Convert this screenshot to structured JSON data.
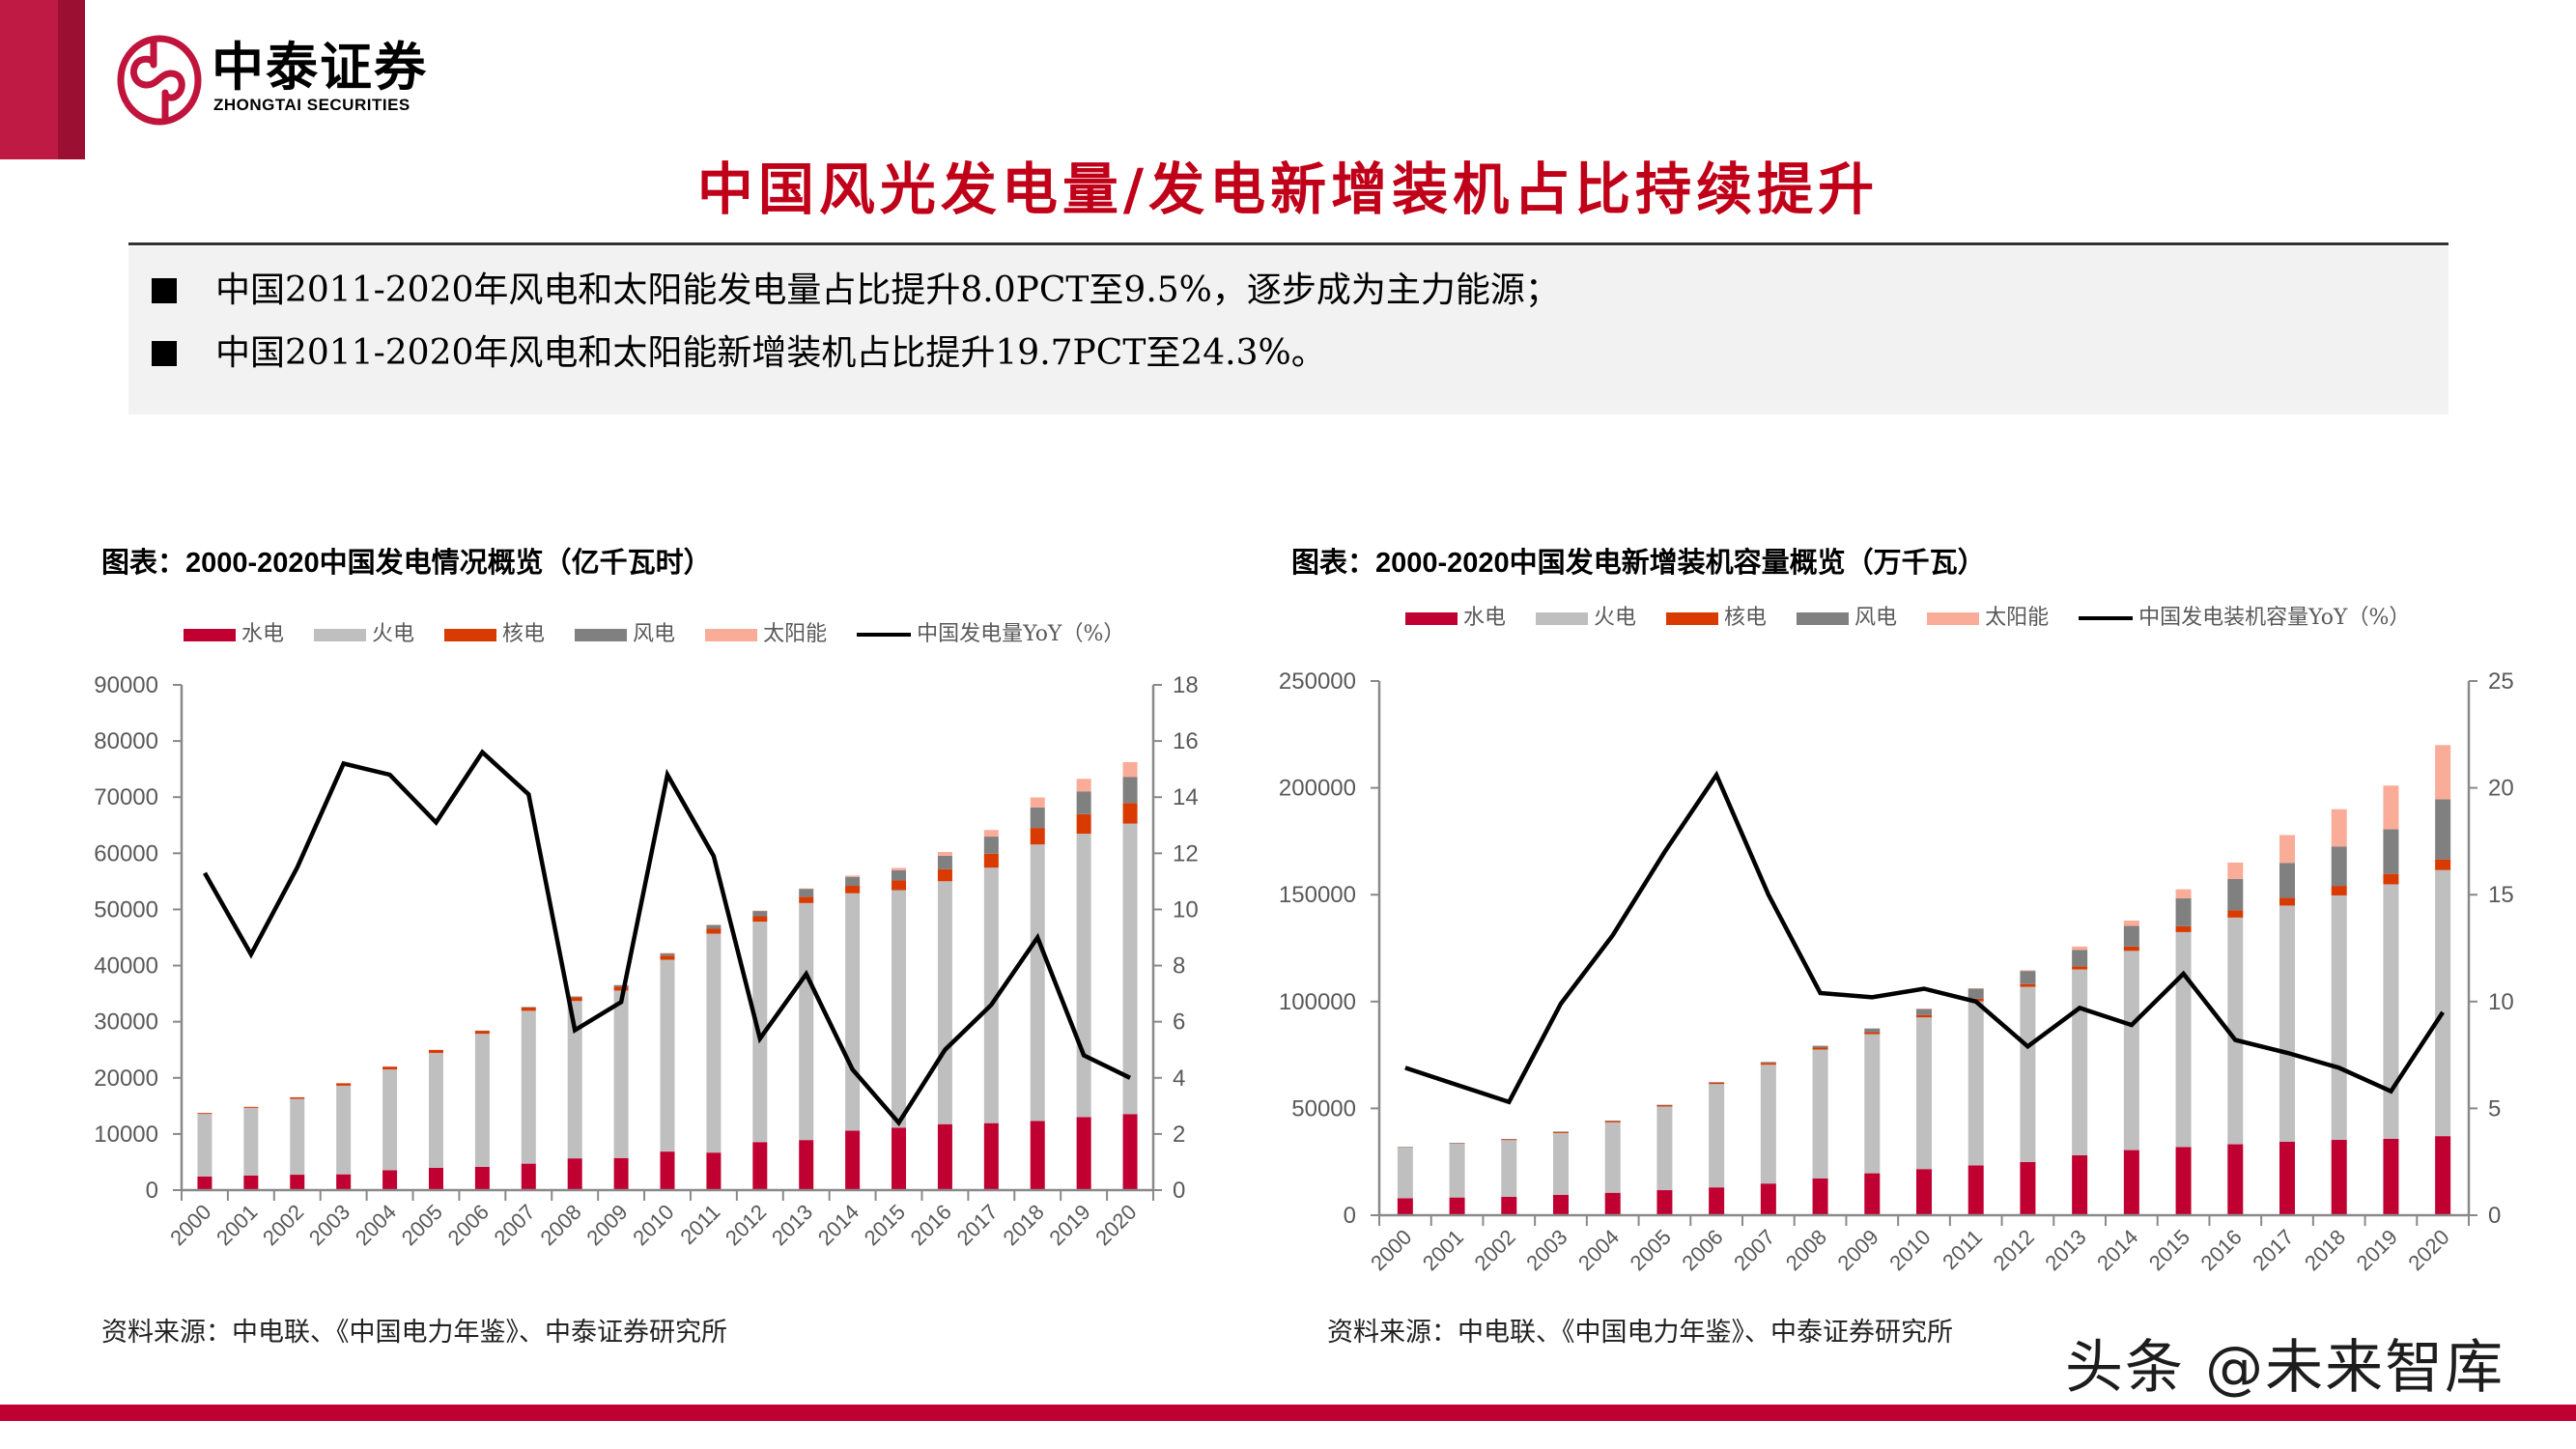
{
  "logo": {
    "brand_cn": "中泰证券",
    "brand_en": "ZHONGTAI SECURITIES"
  },
  "title": "中国风光发电量/发电新增装机占比持续提升",
  "summary": {
    "bullets": [
      "中国2011-2020年风电和太阳能发电量占比提升8.0PCT至9.5%，逐步成为主力能源；",
      "中国2011-2020年风电和太阳能新增装机占比提升19.7PCT至24.3%。"
    ]
  },
  "charts": [
    {
      "title": "图表：2000-2020中国发电情况概览（亿千瓦时）",
      "legend": [
        {
          "label": "水电"
        },
        {
          "label": "火电"
        },
        {
          "label": "核电"
        },
        {
          "label": "风电"
        },
        {
          "label": "太阳能"
        },
        {
          "label": "中国发电量YoY（%）"
        }
      ],
      "source": "资料来源：中电联、《中国电力年鉴》、中泰证券研究所"
    },
    {
      "title": "图表：2000-2020中国发电新增装机容量概览（万千瓦）",
      "legend": [
        {
          "label": "水电"
        },
        {
          "label": "火电"
        },
        {
          "label": "核电"
        },
        {
          "label": "风电"
        },
        {
          "label": "太阳能"
        },
        {
          "label": "中国发电装机容量YoY（%）"
        }
      ],
      "source": "资料来源：中电联、《中国电力年鉴》、中泰证券研究所"
    }
  ],
  "watermark": "头条 @未来智库",
  "colors": {
    "brand_red": "#C0143C",
    "title_red": "#C00018",
    "hydro": "#C00030",
    "thermal": "#BFBFBF",
    "nuclear": "#D93A00",
    "wind": "#808080",
    "solar": "#F9AC98",
    "yoy_line": "#000000",
    "axis": "#898989",
    "tick_label": "#595959"
  },
  "chart_data": [
    {
      "type": "bar",
      "stacked": true,
      "title": "图表：2000-2020中国发电情况概览（亿千瓦时）",
      "xlabel": "",
      "ylabel": "亿千瓦时",
      "y2label": "%",
      "categories": [
        "2000",
        "2001",
        "2002",
        "2003",
        "2004",
        "2005",
        "2006",
        "2007",
        "2008",
        "2009",
        "2010",
        "2011",
        "2012",
        "2013",
        "2014",
        "2015",
        "2016",
        "2017",
        "2018",
        "2019",
        "2020"
      ],
      "series": [
        {
          "name": "水电",
          "type": "bar",
          "axis": "left",
          "color": "#C00030",
          "values": [
            2431,
            2611,
            2746,
            2813,
            3535,
            3970,
            4148,
            4714,
            5655,
            5717,
            6867,
            6681,
            8556,
            8921,
            10601,
            11127,
            11748,
            11931,
            12321,
            13021,
            13552
          ]
        },
        {
          "name": "火电",
          "type": "bar",
          "axis": "left",
          "color": "#BFBFBF",
          "values": [
            11142,
            12045,
            13522,
            15790,
            17956,
            20473,
            23696,
            27229,
            28030,
            29828,
            34166,
            39003,
            39255,
            42216,
            42274,
            42307,
            43273,
            45513,
            49249,
            50465,
            51743
          ]
        },
        {
          "name": "核电",
          "type": "bar",
          "axis": "left",
          "color": "#D93A00",
          "values": [
            167,
            175,
            265,
            433,
            505,
            531,
            548,
            621,
            684,
            701,
            739,
            872,
            974,
            1116,
            1325,
            1714,
            2132,
            2481,
            2944,
            3487,
            3662
          ]
        },
        {
          "name": "风电",
          "type": "bar",
          "axis": "left",
          "color": "#808080",
          "values": [
            0,
            0,
            0,
            0,
            0,
            0,
            28,
            57,
            131,
            276,
            446,
            703,
            960,
            1412,
            1598,
            1856,
            2409,
            3046,
            3660,
            4057,
            4665
          ]
        },
        {
          "name": "太阳能",
          "type": "bar",
          "axis": "left",
          "color": "#F9AC98",
          "values": [
            0,
            0,
            0,
            0,
            0,
            0,
            0,
            0,
            0,
            0,
            1,
            6,
            36,
            84,
            235,
            395,
            665,
            1178,
            1775,
            2240,
            2611
          ]
        },
        {
          "name": "中国发电量YoY（%）",
          "type": "line",
          "axis": "right",
          "color": "#000000",
          "values": [
            11.3,
            8.4,
            11.5,
            15.2,
            14.8,
            13.1,
            15.6,
            14.1,
            5.7,
            6.7,
            14.8,
            11.9,
            5.4,
            7.7,
            4.3,
            2.4,
            5.0,
            6.6,
            9.0,
            4.8,
            4.0
          ]
        }
      ],
      "ylim": [
        0,
        90000
      ],
      "yticks": [
        0,
        10000,
        20000,
        30000,
        40000,
        50000,
        60000,
        70000,
        80000,
        90000
      ],
      "y2lim": [
        0,
        18
      ],
      "y2ticks": [
        0,
        2,
        4,
        6,
        8,
        10,
        12,
        14,
        16,
        18
      ],
      "grid": false,
      "legend_position": "top"
    },
    {
      "type": "bar",
      "stacked": true,
      "title": "图表：2000-2020中国发电新增装机容量概览（万千瓦）",
      "xlabel": "",
      "ylabel": "万千瓦",
      "y2label": "%",
      "categories": [
        "2000",
        "2001",
        "2002",
        "2003",
        "2004",
        "2005",
        "2006",
        "2007",
        "2008",
        "2009",
        "2010",
        "2011",
        "2012",
        "2013",
        "2014",
        "2015",
        "2016",
        "2017",
        "2018",
        "2019",
        "2020"
      ],
      "series": [
        {
          "name": "水电",
          "type": "bar",
          "axis": "left",
          "color": "#C00030",
          "values": [
            7935,
            8301,
            8607,
            9490,
            10524,
            11739,
            13029,
            14823,
            17260,
            19629,
            21606,
            23298,
            24947,
            28044,
            30486,
            31954,
            33207,
            34411,
            35259,
            35804,
            37016
          ]
        },
        {
          "name": "火电",
          "type": "bar",
          "axis": "left",
          "color": "#BFBFBF",
          "values": [
            23754,
            25314,
            26555,
            28977,
            32948,
            39138,
            48382,
            55607,
            60286,
            65108,
            70967,
            76834,
            81968,
            87009,
            93232,
            100554,
            106094,
            110495,
            114408,
            119055,
            124517
          ]
        },
        {
          "name": "核电",
          "type": "bar",
          "axis": "left",
          "color": "#D93A00",
          "values": [
            210,
            210,
            447,
            619,
            684,
            685,
            685,
            885,
            908,
            908,
            1082,
            1257,
            1257,
            1466,
            2008,
            2717,
            3364,
            3582,
            4466,
            4874,
            4989
          ]
        },
        {
          "name": "风电",
          "type": "bar",
          "axis": "left",
          "color": "#808080",
          "values": [
            34,
            38,
            47,
            55,
            82,
            106,
            207,
            420,
            839,
            1760,
            2958,
            4623,
            6142,
            7652,
            9657,
            13075,
            14747,
            16400,
            18427,
            20915,
            28153
          ]
        },
        {
          "name": "太阳能",
          "type": "bar",
          "axis": "left",
          "color": "#F9AC98",
          "values": [
            0,
            0,
            0,
            0,
            0,
            0,
            0,
            0,
            0,
            0,
            26,
            212,
            341,
            1589,
            2486,
            4218,
            7631,
            13042,
            17463,
            20418,
            25343
          ]
        },
        {
          "name": "中国发电装机容量YoY（%）",
          "type": "line",
          "axis": "right",
          "color": "#000000",
          "values": [
            6.9,
            6.1,
            5.3,
            9.9,
            13.1,
            17.0,
            20.6,
            15.0,
            10.4,
            10.2,
            10.6,
            10.0,
            7.9,
            9.7,
            8.9,
            11.3,
            8.2,
            7.6,
            6.9,
            5.8,
            9.5
          ]
        }
      ],
      "ylim": [
        0,
        250000
      ],
      "yticks": [
        0,
        50000,
        100000,
        150000,
        200000,
        250000
      ],
      "y2lim": [
        0,
        25
      ],
      "y2ticks": [
        0,
        5,
        10,
        15,
        20,
        25
      ],
      "grid": false,
      "legend_position": "top"
    }
  ]
}
